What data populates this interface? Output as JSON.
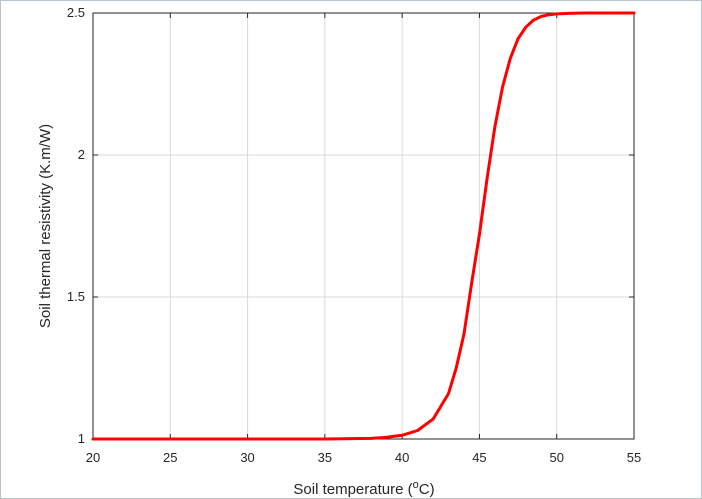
{
  "chart_data": {
    "type": "line",
    "title": "",
    "xlabel": {
      "main": "Soil temperature (",
      "superscript": "o",
      "unit": "C)"
    },
    "ylabel": "Soil thermal resistivity (K.m/W)",
    "xlim": [
      20,
      55
    ],
    "ylim": [
      1,
      2.5
    ],
    "x_ticks": [
      "20",
      "25",
      "30",
      "35",
      "40",
      "45",
      "50",
      "55"
    ],
    "y_ticks": [
      "1",
      "1.5",
      "2",
      "2.5"
    ],
    "grid": true,
    "legend": "none",
    "series": [
      {
        "color": "#ff0000",
        "x": [
          20,
          25,
          30,
          35,
          38,
          39,
          40,
          41,
          42,
          43,
          43.5,
          44,
          44.5,
          45,
          45.5,
          46,
          46.5,
          47,
          47.5,
          48,
          48.5,
          49,
          49.5,
          50,
          51,
          52,
          53,
          55
        ],
        "y": [
          1.0,
          1.0,
          1.0,
          1.0,
          1.002,
          1.006,
          1.013,
          1.03,
          1.07,
          1.16,
          1.25,
          1.37,
          1.55,
          1.72,
          1.92,
          2.1,
          2.24,
          2.34,
          2.41,
          2.45,
          2.475,
          2.488,
          2.494,
          2.497,
          2.499,
          2.5,
          2.5,
          2.5
        ]
      }
    ]
  }
}
